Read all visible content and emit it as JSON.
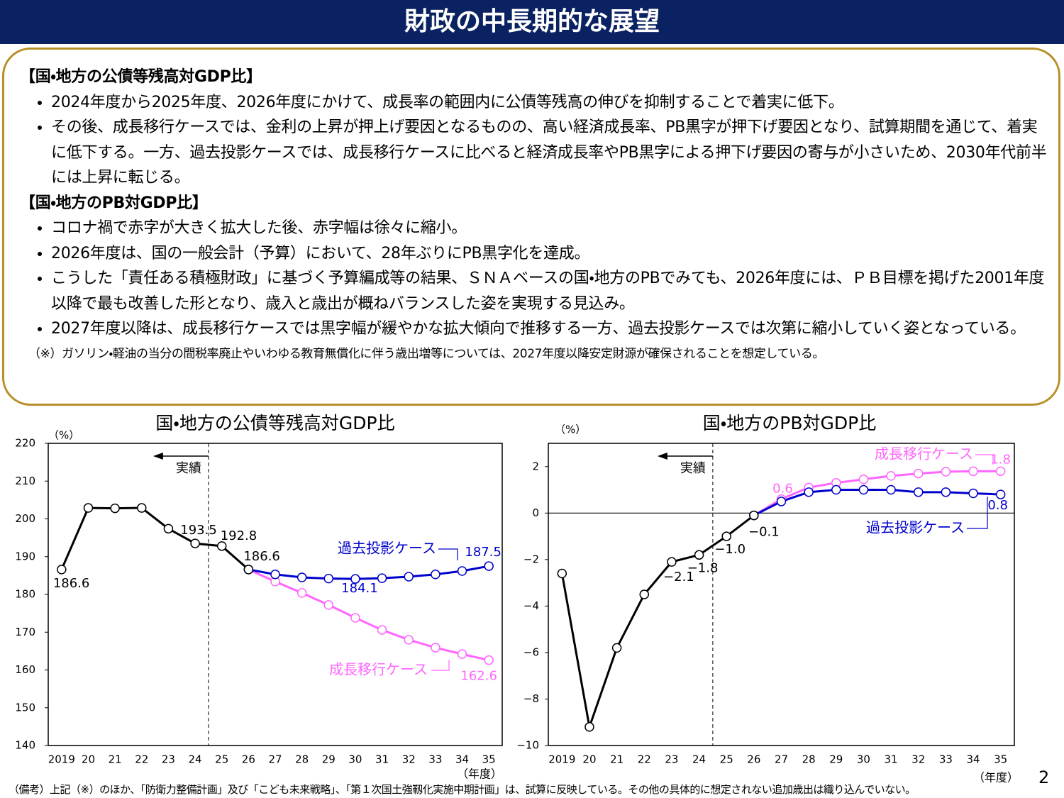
{
  "header": {
    "title": "財政の中長期的な展望"
  },
  "summary": {
    "sections": [
      {
        "heading": "【国・地方の公債等残高対GDP比】",
        "bullets": [
          "2024年度から2025年度、2026年度にかけて、成長率の範囲内に公債等残高の伸びを抑制することで着実に低下。",
          "その後、成長移行ケースでは、金利の上昇が押上げ要因となるものの、高い経済成長率、PB黒字が押下げ要因となり、試算期間を通じて、着実に低下する。一方、過去投影ケースでは、成長移行ケースに比べると経済成長率やPB黒字による押下げ要因の寄与が小さいため、2030年代前半には上昇に転じる。"
        ]
      },
      {
        "heading": "【国・地方のPB対GDP比】",
        "bullets": [
          "コロナ禍で赤字が大きく拡大した後、赤字幅は徐々に縮小。",
          "2026年度は、国の一般会計（予算）において、28年ぶりにPB黒字化を達成。",
          "こうした「責任ある積極財政」に基づく予算編成等の結果、ＳＮＡベースの国・地方のPBでみても、2026年度には、ＰＢ目標を掲げた2001年度以降で最も改善した形となり、歳入と歳出が概ねバランスした姿を実現する見込み。",
          "2027年度以降は、成長移行ケースでは黒字幅が緩やかな拡大傾向で推移する一方、過去投影ケースでは次第に縮小していく姿となっている。"
        ]
      }
    ],
    "note": "（※）ガソリン・軽油の当分の間税率廃止やいわゆる教育無償化に伴う歳出増等については、2027年度以降安定財源が確保されることを想定している。"
  },
  "chart_data": [
    {
      "type": "line",
      "title": "国・地方の公債等残高対GDP比",
      "y_unit": "（%）",
      "x_unit": "（年度）",
      "annotation": "実績",
      "categories": [
        "2019",
        "20",
        "21",
        "22",
        "23",
        "24",
        "25",
        "26",
        "27",
        "28",
        "29",
        "30",
        "31",
        "32",
        "33",
        "34",
        "35"
      ],
      "ylim": [
        140,
        220
      ],
      "yticks": [
        140,
        150,
        160,
        170,
        180,
        190,
        200,
        210,
        220
      ],
      "series": [
        {
          "name": "成長移行ケース",
          "color": "#ff66ff",
          "values": [
            null,
            null,
            null,
            null,
            null,
            null,
            null,
            186.6,
            183.4,
            180.4,
            177.2,
            173.8,
            170.6,
            168.0,
            165.9,
            164.2,
            162.6
          ],
          "value_labels": [
            null,
            null,
            null,
            null,
            null,
            null,
            null,
            null,
            null,
            null,
            null,
            null,
            null,
            null,
            null,
            null,
            "162.6"
          ]
        },
        {
          "name": "過去投影ケース",
          "color": "#0000cc",
          "values": [
            null,
            null,
            null,
            null,
            null,
            null,
            null,
            186.6,
            185.3,
            184.5,
            184.2,
            184.1,
            184.3,
            184.7,
            185.3,
            186.2,
            187.5
          ],
          "value_labels": [
            null,
            null,
            null,
            null,
            null,
            null,
            null,
            null,
            null,
            null,
            null,
            "184.1",
            null,
            null,
            null,
            null,
            "187.5"
          ]
        },
        {
          "color": "#000000",
          "values": [
            186.6,
            202.9,
            202.8,
            202.9,
            197.4,
            193.5,
            192.8,
            186.6,
            null,
            null,
            null,
            null,
            null,
            null,
            null,
            null,
            null
          ],
          "value_labels": [
            "186.6",
            null,
            null,
            null,
            null,
            "193.5",
            "192.8",
            "186.6",
            null,
            null,
            null,
            null,
            null,
            null,
            null,
            null,
            null
          ]
        }
      ]
    },
    {
      "type": "line",
      "title": "国・地方のPB対GDP比",
      "y_unit": "（%）",
      "x_unit": "（年度）",
      "annotation": "実績",
      "categories": [
        "2019",
        "20",
        "21",
        "22",
        "23",
        "24",
        "25",
        "26",
        "27",
        "28",
        "29",
        "30",
        "31",
        "32",
        "33",
        "34",
        "35"
      ],
      "ylim": [
        -10,
        3
      ],
      "yticks": [
        {
          "value": -10,
          "label": "−10"
        },
        {
          "value": -8,
          "label": "−8"
        },
        {
          "value": -6,
          "label": "−6"
        },
        {
          "value": -4,
          "label": "−4"
        },
        {
          "value": -2,
          "label": "−2"
        },
        0,
        2
      ],
      "series": [
        {
          "name": "成長移行ケース",
          "color": "#ff66ff",
          "values": [
            null,
            null,
            null,
            null,
            null,
            null,
            null,
            -0.1,
            0.6,
            1.1,
            1.3,
            1.45,
            1.6,
            1.7,
            1.78,
            1.8,
            1.8
          ],
          "value_labels": [
            null,
            null,
            null,
            null,
            null,
            null,
            null,
            null,
            "0.6",
            null,
            null,
            null,
            null,
            null,
            null,
            null,
            "1.8"
          ]
        },
        {
          "name": "過去投影ケース",
          "color": "#0000cc",
          "values": [
            null,
            null,
            null,
            null,
            null,
            null,
            null,
            -0.1,
            0.5,
            0.9,
            1.0,
            1.0,
            1.0,
            0.9,
            0.9,
            0.85,
            0.8
          ],
          "value_labels": [
            null,
            null,
            null,
            null,
            null,
            null,
            null,
            null,
            null,
            null,
            null,
            null,
            null,
            null,
            null,
            null,
            "0.8"
          ]
        },
        {
          "color": "#000000",
          "values": [
            -2.6,
            -9.2,
            -5.8,
            -3.5,
            -2.1,
            -1.8,
            -1.0,
            -0.1,
            null,
            null,
            null,
            null,
            null,
            null,
            null,
            null,
            null
          ],
          "value_labels": [
            null,
            null,
            null,
            null,
            "−2.1",
            "−1.8",
            "−1.0",
            "−0.1",
            null,
            null,
            null,
            null,
            null,
            null,
            null,
            null,
            null
          ]
        }
      ]
    }
  ],
  "footnote": "（備考）上記（※）のほか、「防衛力整備計画」及び「こども未来戦略」、「第１次国土強靱化実施中期計画」は、試算に反映している。その他の具体的に想定されない追加歳出は織り込んでいない。",
  "page_number": 2
}
